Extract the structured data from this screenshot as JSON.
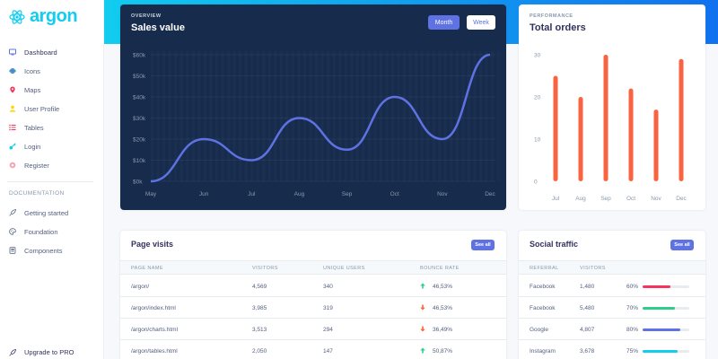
{
  "brand": {
    "name": "argon"
  },
  "sidebar": {
    "items": [
      {
        "label": "Dashboard",
        "icon": "tv-icon",
        "color": "#5e72e4"
      },
      {
        "label": "Icons",
        "icon": "planet-icon",
        "color": "#5e72e4"
      },
      {
        "label": "Maps",
        "icon": "pin-icon",
        "color": "#f5365c"
      },
      {
        "label": "User Profile",
        "icon": "user-icon",
        "color": "#ffd600"
      },
      {
        "label": "Tables",
        "icon": "bullet-list-icon",
        "color": "#f5365c"
      },
      {
        "label": "Login",
        "icon": "key-icon",
        "color": "#11cdef"
      },
      {
        "label": "Register",
        "icon": "circle-icon",
        "color": "#f3a4b5"
      }
    ],
    "section_label": "DOCUMENTATION",
    "doc_items": [
      {
        "label": "Getting started",
        "icon": "spaceship-icon"
      },
      {
        "label": "Foundation",
        "icon": "palette-icon"
      },
      {
        "label": "Components",
        "icon": "ui-icon"
      }
    ],
    "upgrade_label": "Upgrade to PRO"
  },
  "sales_card": {
    "overline": "OVERVIEW",
    "title": "Sales value",
    "tabs": {
      "month": "Month",
      "week": "Week"
    }
  },
  "orders_card": {
    "overline": "PERFORMANCE",
    "title": "Total orders"
  },
  "chart_data": [
    {
      "type": "line",
      "title": "Sales value",
      "categories": [
        "May",
        "Jun",
        "Jul",
        "Aug",
        "Sep",
        "Oct",
        "Nov",
        "Dec"
      ],
      "yticks": [
        "$0k",
        "$10k",
        "$20k",
        "$30k",
        "$40k",
        "$50k",
        "$60k"
      ],
      "values": [
        0,
        20,
        10,
        30,
        15,
        40,
        20,
        60
      ],
      "ylim": [
        0,
        60
      ],
      "grid": true,
      "color": "#5e72e4"
    },
    {
      "type": "bar",
      "title": "Total orders",
      "categories": [
        "Jul",
        "Aug",
        "Sep",
        "Oct",
        "Nov",
        "Dec"
      ],
      "yticks": [
        "0",
        "10",
        "20",
        "30"
      ],
      "values": [
        25,
        20,
        30,
        22,
        17,
        29
      ],
      "ylim": [
        0,
        30
      ],
      "color": "#fb6340"
    }
  ],
  "page_visits": {
    "title": "Page visits",
    "see_all": "See all",
    "columns": [
      "PAGE NAME",
      "VISITORS",
      "UNIQUE USERS",
      "BOUNCE RATE"
    ],
    "rows": [
      {
        "page": "/argon/",
        "visitors": "4,569",
        "unique": "340",
        "bounce": "46,53%",
        "direction": "up"
      },
      {
        "page": "/argon/index.html",
        "visitors": "3,985",
        "unique": "319",
        "bounce": "46,53%",
        "direction": "down"
      },
      {
        "page": "/argon/charts.html",
        "visitors": "3,513",
        "unique": "294",
        "bounce": "36,49%",
        "direction": "down"
      },
      {
        "page": "/argon/tables.html",
        "visitors": "2,050",
        "unique": "147",
        "bounce": "50,87%",
        "direction": "up"
      }
    ]
  },
  "social_traffic": {
    "title": "Social traffic",
    "see_all": "See all",
    "columns": [
      "REFERRAL",
      "VISITORS"
    ],
    "rows": [
      {
        "referral": "Facebook",
        "visitors": "1,480",
        "percent_label": "60%",
        "percent": 60,
        "color": "#f5365c"
      },
      {
        "referral": "Facebook",
        "visitors": "5,480",
        "percent_label": "70%",
        "percent": 70,
        "color": "#2dce89"
      },
      {
        "referral": "Google",
        "visitors": "4,807",
        "percent_label": "80%",
        "percent": 80,
        "color": "#5e72e4"
      },
      {
        "referral": "Instagram",
        "visitors": "3,678",
        "percent_label": "75%",
        "percent": 75,
        "color": "#11cdef"
      }
    ]
  }
}
